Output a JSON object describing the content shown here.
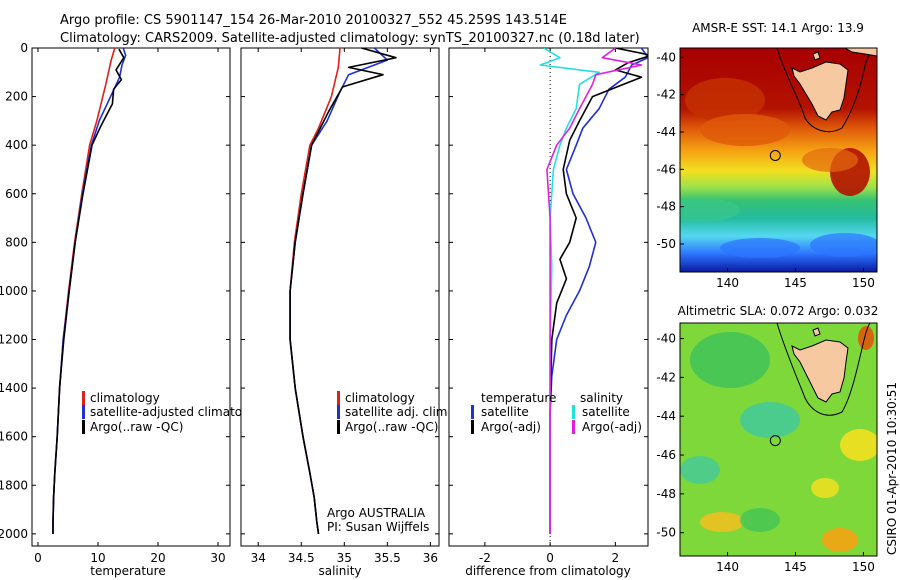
{
  "figure": {
    "title_line1": "Argo profile: CS 5901147_154 26-Mar-2010 20100327_552 45.259S 143.514E",
    "title_line2": "Climatology: CARS2009. Satellite-adjusted climatology: synTS_20100327.nc (0.18d later)",
    "side_text": "CSIRO 01-Apr-2010 10:30:51",
    "annotation_line1": "Argo AUSTRALIA",
    "annotation_line2": "PI: Susan Wijffels"
  },
  "colors": {
    "climatology": "#e0201b",
    "satellite": "#1f2fd6",
    "argo": "#000000",
    "sal_satellite": "#22e0e0",
    "sal_argo": "#e020e0",
    "land": "#f7c9a0"
  },
  "chart_data": [
    {
      "type": "line",
      "name": "temperature-profile",
      "xlabel": "temperature",
      "ylabel": "",
      "xlim": [
        -1,
        32
      ],
      "ylim": [
        2050,
        0
      ],
      "xticks": [
        0,
        10,
        20,
        30
      ],
      "yticks": [
        0,
        200,
        400,
        600,
        800,
        1000,
        1200,
        1400,
        1600,
        1800,
        2000
      ],
      "y_is_depth": true,
      "legend_placement": "lower-right",
      "series": [
        {
          "name": "climatology",
          "color_key": "climatology",
          "x": [
            12.8,
            12.2,
            11.3,
            9.8,
            8.6,
            7.3,
            6.1,
            5.1,
            4.2,
            3.6,
            3.2,
            2.8,
            2.6,
            2.5,
            2.5
          ],
          "y": [
            0,
            50,
            150,
            300,
            400,
            600,
            800,
            1000,
            1200,
            1400,
            1600,
            1750,
            1850,
            1950,
            2000
          ]
        },
        {
          "name": "satellite-adjusted climatology",
          "color_key": "satellite",
          "x": [
            14.2,
            14.6,
            14.0,
            13.6,
            12.1,
            10.2,
            8.9,
            7.4,
            6.2,
            5.2,
            4.2,
            3.6,
            3.2,
            2.8,
            2.6,
            2.5,
            2.5
          ],
          "y": [
            0,
            30,
            70,
            120,
            200,
            300,
            400,
            600,
            800,
            1000,
            1200,
            1400,
            1600,
            1750,
            1850,
            1950,
            2000
          ]
        },
        {
          "name": "Argo(..raw -QC)",
          "color_key": "argo",
          "x": [
            13.5,
            14.3,
            13.0,
            13.9,
            12.6,
            12.4,
            10.5,
            9.0,
            7.5,
            6.2,
            5.2,
            4.3,
            3.6,
            3.2,
            2.8,
            2.6,
            2.5,
            2.5
          ],
          "y": [
            5,
            40,
            90,
            130,
            170,
            230,
            320,
            400,
            600,
            800,
            1000,
            1200,
            1400,
            1600,
            1750,
            1850,
            1950,
            2000
          ]
        }
      ],
      "legend": [
        "climatology",
        "satellite-adjusted climatology",
        "Argo(..raw -QC)"
      ]
    },
    {
      "type": "line",
      "name": "salinity-profile",
      "xlabel": "salinity",
      "ylabel": "",
      "xlim": [
        33.8,
        36.1
      ],
      "ylim": [
        2050,
        0
      ],
      "xticks": [
        34,
        34.5,
        35,
        35.5,
        36
      ],
      "xtick_labels": [
        "34",
        "34.5",
        "35",
        "35.5",
        "36"
      ],
      "y_is_depth": true,
      "legend_placement": "lower-right",
      "series": [
        {
          "name": "climatology",
          "color_key": "climatology",
          "x": [
            34.95,
            34.93,
            34.85,
            34.7,
            34.6,
            34.5,
            34.42,
            34.37,
            34.37,
            34.43,
            34.52,
            34.6,
            34.65,
            34.68,
            34.7
          ],
          "y": [
            0,
            80,
            200,
            330,
            400,
            600,
            800,
            1000,
            1200,
            1400,
            1600,
            1750,
            1850,
            1950,
            2000
          ]
        },
        {
          "name": "satellite adj. clim.",
          "color_key": "satellite",
          "x": [
            35.35,
            35.5,
            35.05,
            34.95,
            34.8,
            34.62,
            34.52,
            34.43,
            34.37,
            34.37,
            34.43,
            34.52,
            34.6,
            34.65,
            34.68,
            34.7
          ],
          "y": [
            0,
            50,
            110,
            180,
            300,
            400,
            600,
            800,
            1000,
            1200,
            1400,
            1600,
            1750,
            1850,
            1950,
            2000
          ]
        },
        {
          "name": "Argo(..raw -QC)",
          "color_key": "argo",
          "x": [
            35.2,
            35.6,
            35.05,
            35.45,
            34.98,
            34.82,
            34.62,
            34.52,
            34.43,
            34.37,
            34.37,
            34.43,
            34.52,
            34.6,
            34.65,
            34.68,
            34.7
          ],
          "y": [
            0,
            40,
            80,
            110,
            160,
            260,
            400,
            600,
            800,
            1000,
            1200,
            1400,
            1600,
            1750,
            1850,
            1950,
            2000
          ]
        }
      ],
      "legend": [
        "climatology",
        "satellite adj. clim.",
        "Argo(..raw -QC)"
      ]
    },
    {
      "type": "line",
      "name": "difference-profile",
      "xlabel": "difference from climatology",
      "ylabel": "",
      "xlim": [
        -3.1,
        3.0
      ],
      "ylim": [
        2050,
        0
      ],
      "xticks": [
        -2,
        0,
        2
      ],
      "y_is_depth": true,
      "zero_line": true,
      "legend_placement": "lower-center",
      "legend_headers": [
        "temperature",
        "salinity"
      ],
      "series": [
        {
          "name": "temperature satellite",
          "color_key": "satellite",
          "x": [
            2.8,
            3.0,
            2.5,
            2.3,
            1.8,
            1.5,
            1.0,
            0.8,
            0.5,
            0.7,
            1.1,
            1.4,
            1.2,
            0.9,
            0.5,
            0.2,
            0.05,
            0.0,
            0.0,
            0.0
          ],
          "y": [
            0,
            40,
            70,
            120,
            170,
            250,
            330,
            400,
            500,
            600,
            700,
            800,
            900,
            1000,
            1100,
            1200,
            1350,
            1500,
            1800,
            2000
          ]
        },
        {
          "name": "temperature Argo(-adj)",
          "color_key": "argo",
          "x": [
            2.0,
            3.1,
            2.4,
            2.0,
            2.8,
            1.3,
            0.9,
            0.6,
            0.4,
            0.5,
            0.8,
            0.6,
            0.3,
            0.5,
            0.2,
            0.05,
            0.0,
            0.0,
            0.0
          ],
          "y": [
            0,
            30,
            60,
            90,
            120,
            200,
            300,
            380,
            500,
            600,
            700,
            800,
            870,
            950,
            1050,
            1200,
            1500,
            1800,
            2000
          ]
        },
        {
          "name": "salinity satellite",
          "color_key": "sal_satellite",
          "x": [
            -0.2,
            0.3,
            -0.3,
            1.5,
            0.9,
            0.8,
            0.5,
            0.3,
            0.1,
            0.0,
            0.05,
            0.0,
            0.0,
            0.0
          ],
          "y": [
            0,
            40,
            70,
            100,
            150,
            250,
            330,
            400,
            500,
            700,
            900,
            1200,
            1600,
            2000
          ]
        },
        {
          "name": "salinity Argo(-adj)",
          "color_key": "sal_argo",
          "x": [
            2.0,
            1.6,
            2.8,
            1.4,
            1.3,
            0.9,
            0.6,
            0.2,
            -0.1,
            0.0,
            0.0,
            0.0,
            0.0
          ],
          "y": [
            0,
            40,
            70,
            110,
            150,
            250,
            330,
            400,
            500,
            700,
            1000,
            1500,
            2000
          ]
        }
      ],
      "legend": [
        "satellite",
        "Argo(-adj)",
        "satellite",
        "Argo(-adj)"
      ]
    },
    {
      "type": "heatmap",
      "name": "sst-map",
      "title": "AMSR-E SST: 14.1  Argo: 13.9",
      "xlim": [
        136.5,
        151
      ],
      "ylim": [
        -51.5,
        -39.5
      ],
      "xticks": [
        140,
        145,
        150
      ],
      "yticks": [
        -40,
        -42,
        -44,
        -46,
        -48,
        -50
      ],
      "argo_position": [
        143.514,
        -45.259
      ]
    },
    {
      "type": "heatmap",
      "name": "sla-map",
      "title": "Altimetric SLA: 0.072  Argo: 0.032",
      "xlim": [
        136.5,
        151
      ],
      "ylim": [
        -51.2,
        -39.2
      ],
      "xticks": [
        140,
        145,
        150
      ],
      "yticks": [
        -40,
        -42,
        -44,
        -46,
        -48,
        -50
      ],
      "argo_position": [
        143.514,
        -45.259
      ]
    }
  ]
}
